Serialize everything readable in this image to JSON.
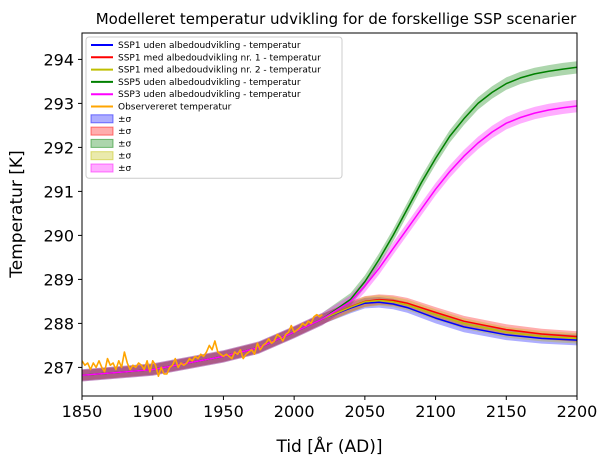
{
  "chart_data": {
    "type": "line",
    "title": "Modelleret temperatur udvikling for de forskellige SSP scenarier",
    "xlabel": "Tid [År (AD)]",
    "ylabel": "Temperatur [K]",
    "xlim": [
      1850,
      2200
    ],
    "ylim": [
      286.35,
      294.6
    ],
    "xticks": [
      "1850",
      "1900",
      "1950",
      "2000",
      "2050",
      "2100",
      "2150",
      "2200"
    ],
    "yticks": [
      "287",
      "288",
      "289",
      "290",
      "291",
      "292",
      "293",
      "294"
    ],
    "grid": false,
    "legend_position": "top-left",
    "series": [
      {
        "name": "SSP1 uden albedoudvikling - temperatur",
        "color": "#0000ff",
        "x": [
          1850,
          1900,
          1950,
          1975,
          2000,
          2020,
          2040,
          2050,
          2060,
          2070,
          2080,
          2100,
          2120,
          2150,
          2175,
          2200
        ],
        "y": [
          286.82,
          286.95,
          287.25,
          287.45,
          287.8,
          288.1,
          288.35,
          288.46,
          288.48,
          288.44,
          288.36,
          288.12,
          287.92,
          287.74,
          287.66,
          287.62
        ],
        "band": 0.12
      },
      {
        "name": "SSP1 med albedoudvikling nr. 1 - temperatur",
        "color": "#ff0000",
        "x": [
          1850,
          1900,
          1950,
          1975,
          2000,
          2020,
          2040,
          2050,
          2060,
          2070,
          2080,
          2100,
          2120,
          2150,
          2175,
          2200
        ],
        "y": [
          286.82,
          286.95,
          287.25,
          287.45,
          287.8,
          288.1,
          288.38,
          288.5,
          288.54,
          288.52,
          288.46,
          288.25,
          288.05,
          287.86,
          287.76,
          287.7
        ],
        "band": 0.12
      },
      {
        "name": "SSP1 med albedoudvikling nr. 2 - temperatur",
        "color": "#bfbf00",
        "x": [
          1850,
          1900,
          1950,
          1975,
          2000,
          2020,
          2040,
          2050,
          2060,
          2070,
          2080,
          2100,
          2120,
          2150,
          2175,
          2200
        ],
        "y": [
          286.82,
          286.95,
          287.25,
          287.45,
          287.8,
          288.1,
          288.37,
          288.49,
          288.52,
          288.49,
          288.42,
          288.2,
          288.0,
          287.8,
          287.71,
          287.66
        ],
        "band": 0.12
      },
      {
        "name": "SSP5 uden albedoudvikling - temperatur",
        "color": "#008000",
        "x": [
          1850,
          1900,
          1950,
          1975,
          2000,
          2020,
          2040,
          2050,
          2060,
          2070,
          2080,
          2090,
          2100,
          2110,
          2120,
          2130,
          2140,
          2150,
          2160,
          2170,
          2180,
          2190,
          2200
        ],
        "y": [
          286.82,
          286.95,
          287.25,
          287.45,
          287.8,
          288.1,
          288.55,
          288.95,
          289.45,
          290.0,
          290.6,
          291.2,
          291.75,
          292.25,
          292.65,
          293.0,
          293.25,
          293.45,
          293.58,
          293.67,
          293.73,
          293.78,
          293.82
        ],
        "band": 0.14
      },
      {
        "name": "SSP3 uden albedoudvikling - temperatur",
        "color": "#ff00ff",
        "x": [
          1850,
          1900,
          1950,
          1975,
          2000,
          2020,
          2040,
          2050,
          2060,
          2070,
          2080,
          2090,
          2100,
          2110,
          2120,
          2130,
          2140,
          2150,
          2160,
          2170,
          2180,
          2190,
          2200
        ],
        "y": [
          286.82,
          286.95,
          287.25,
          287.45,
          287.8,
          288.1,
          288.5,
          288.85,
          289.25,
          289.7,
          290.15,
          290.6,
          291.05,
          291.45,
          291.8,
          292.1,
          292.35,
          292.55,
          292.68,
          292.78,
          292.85,
          292.9,
          292.94
        ],
        "band": 0.14
      },
      {
        "name": "Observereret temperatur",
        "color": "#ffa500",
        "x": [
          1850,
          1852,
          1854,
          1856,
          1858,
          1860,
          1862,
          1864,
          1866,
          1868,
          1870,
          1872,
          1874,
          1876,
          1878,
          1880,
          1882,
          1884,
          1886,
          1888,
          1890,
          1892,
          1894,
          1896,
          1898,
          1900,
          1902,
          1904,
          1906,
          1908,
          1910,
          1912,
          1914,
          1916,
          1918,
          1920,
          1922,
          1924,
          1926,
          1928,
          1930,
          1932,
          1934,
          1936,
          1938,
          1940,
          1942,
          1944,
          1946,
          1948,
          1950,
          1952,
          1954,
          1956,
          1958,
          1960,
          1962,
          1964,
          1966,
          1968,
          1970,
          1972,
          1974,
          1976,
          1978,
          1980,
          1982,
          1984,
          1986,
          1988,
          1990,
          1992,
          1994,
          1996,
          1998,
          2000,
          2002,
          2004,
          2006,
          2008,
          2010,
          2012,
          2014,
          2016,
          2018,
          2020
        ],
        "y": [
          287.15,
          287.05,
          287.1,
          286.95,
          287.1,
          287.0,
          287.15,
          287.0,
          286.9,
          287.2,
          287.05,
          287.1,
          286.95,
          287.15,
          287.0,
          287.35,
          287.1,
          286.95,
          287.05,
          287.0,
          287.1,
          287.05,
          286.95,
          287.15,
          286.9,
          287.15,
          287.05,
          286.8,
          287.0,
          286.85,
          286.85,
          287.0,
          287.05,
          287.2,
          287.0,
          287.1,
          287.05,
          287.1,
          287.2,
          287.15,
          287.25,
          287.2,
          287.3,
          287.25,
          287.35,
          287.5,
          287.4,
          287.6,
          287.35,
          287.3,
          287.25,
          287.3,
          287.25,
          287.2,
          287.35,
          287.3,
          287.4,
          287.2,
          287.3,
          287.35,
          287.4,
          287.3,
          287.55,
          287.4,
          287.5,
          287.55,
          287.65,
          287.55,
          287.6,
          287.75,
          287.7,
          287.6,
          287.75,
          287.8,
          287.95,
          287.8,
          287.85,
          287.9,
          288.0,
          287.95,
          288.05,
          288.0,
          288.15,
          288.2,
          288.15,
          288.2
        ]
      }
    ],
    "band_legend": [
      {
        "label": "±σ",
        "color": "#0000ff"
      },
      {
        "label": "±σ",
        "color": "#ff0000"
      },
      {
        "label": "±σ",
        "color": "#008000"
      },
      {
        "label": "±σ",
        "color": "#bfbf00"
      },
      {
        "label": "±σ",
        "color": "#ff00ff"
      }
    ]
  }
}
